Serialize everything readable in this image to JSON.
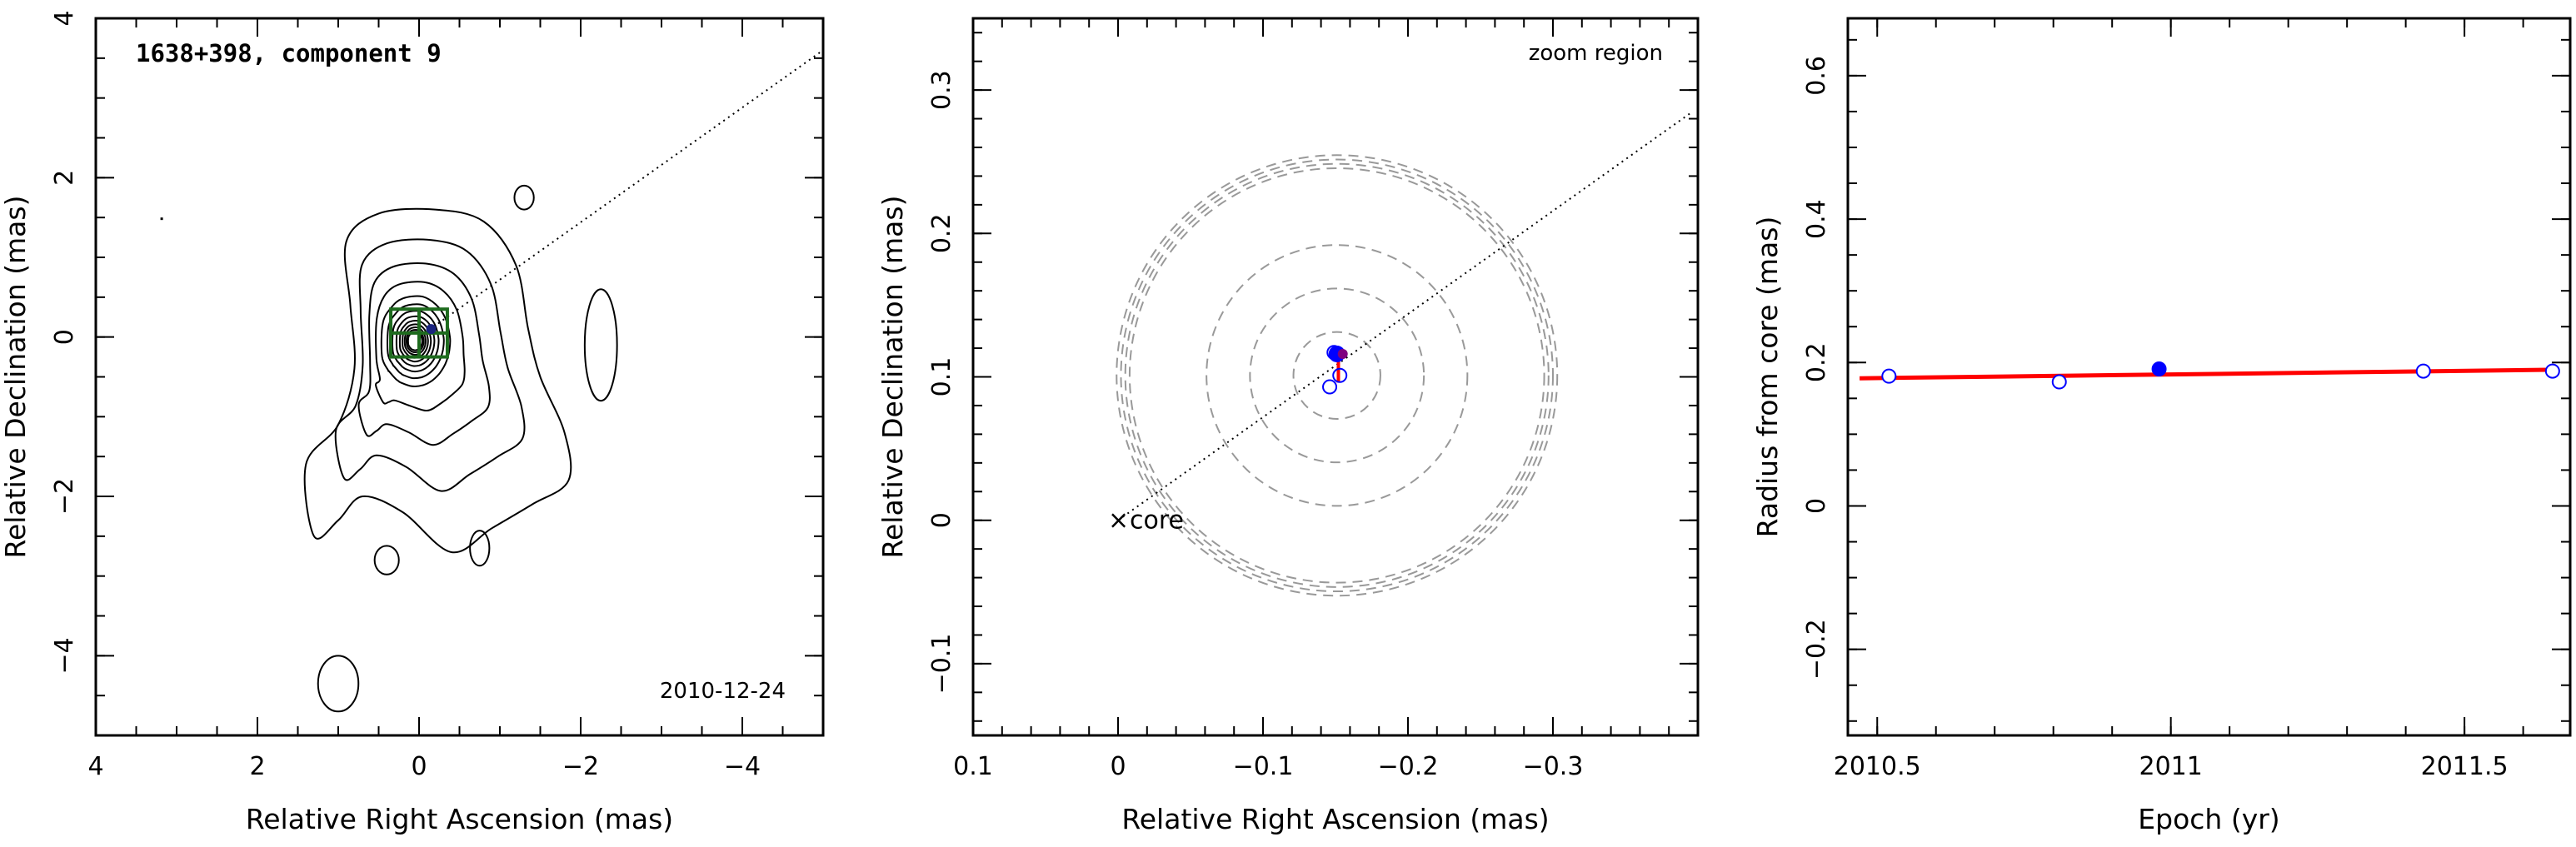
{
  "chart_data": [
    {
      "type": "contour",
      "title": "1638+398, component 9",
      "date_label": "2010-12-24",
      "xlabel": "Relative Right Ascension (mas)",
      "ylabel": "Relative Declination (mas)",
      "xlim": [
        4,
        -5
      ],
      "ylim": [
        -5,
        4
      ],
      "xticks": [
        4,
        2,
        0,
        -2,
        -4
      ],
      "yticks": [
        -4,
        -2,
        0,
        2,
        4
      ],
      "xtick_labels": [
        "4",
        "2",
        "0",
        "−2",
        "−4"
      ],
      "ytick_labels": [
        "−4",
        "−2",
        "0",
        "2",
        "4"
      ],
      "jet_direction_line": {
        "from": [
          0,
          0
        ],
        "to": [
          -5,
          3.6
        ],
        "style": "dotted"
      },
      "component_box": {
        "x": [
          0.35,
          -0.35
        ],
        "y": [
          -0.25,
          0.35
        ],
        "color": "#1e6b1e"
      },
      "component_position": [
        -0.15,
        0.1
      ],
      "beam_marker": [
        3.2,
        1.5
      ],
      "contour_center": [
        0.05,
        -0.05
      ],
      "contour_count": 13,
      "outer_contour_points": [
        [
          0.9,
          1.2
        ],
        [
          0.5,
          1.55
        ],
        [
          -0.2,
          1.6
        ],
        [
          -0.8,
          1.45
        ],
        [
          -1.2,
          0.9
        ],
        [
          -1.35,
          0.1
        ],
        [
          -1.5,
          -0.5
        ],
        [
          -1.8,
          -1.2
        ],
        [
          -1.85,
          -1.8
        ],
        [
          -1.4,
          -2.1
        ],
        [
          -0.9,
          -2.4
        ],
        [
          -0.4,
          -2.7
        ],
        [
          0.2,
          -2.2
        ],
        [
          0.7,
          -2.0
        ],
        [
          1.0,
          -2.3
        ],
        [
          1.3,
          -2.5
        ],
        [
          1.4,
          -1.6
        ],
        [
          1.0,
          -1.1
        ],
        [
          0.8,
          -0.4
        ],
        [
          0.85,
          0.4
        ]
      ],
      "islands": [
        {
          "cx": -1.3,
          "cy": 1.75,
          "rx": 0.12,
          "ry": 0.15
        },
        {
          "cx": -2.25,
          "cy": -0.1,
          "rx": 0.2,
          "ry": 0.7
        },
        {
          "cx": 0.4,
          "cy": -2.8,
          "rx": 0.15,
          "ry": 0.18
        },
        {
          "cx": -0.75,
          "cy": -2.65,
          "rx": 0.12,
          "ry": 0.22
        },
        {
          "cx": 1.0,
          "cy": -4.35,
          "rx": 0.25,
          "ry": 0.35
        }
      ]
    },
    {
      "type": "scatter",
      "annotation": "zoom region",
      "core_label": "core",
      "core_marker": "×",
      "xlabel": "Relative Right Ascension (mas)",
      "ylabel": "Relative Declination (mas)",
      "xlim": [
        0.1,
        -0.4
      ],
      "ylim": [
        -0.15,
        0.35
      ],
      "xticks": [
        0.1,
        0,
        -0.1,
        -0.2,
        -0.3
      ],
      "yticks": [
        -0.1,
        0,
        0.1,
        0.2,
        0.3
      ],
      "xtick_labels": [
        "0.1",
        "0",
        "−0.1",
        "−0.2",
        "−0.3"
      ],
      "ytick_labels": [
        "−0.1",
        "0",
        "0.1",
        "0.2",
        "0.3"
      ],
      "jet_direction_line": {
        "from": [
          0,
          0
        ],
        "to": [
          -0.395,
          0.284
        ],
        "style": "dotted"
      },
      "circles_center": [
        -0.151,
        0.101
      ],
      "circle_radii": [
        0.03,
        0.06,
        0.09,
        0.143,
        0.146,
        0.149,
        0.152
      ],
      "positions_open": [
        {
          "x": -0.146,
          "y": 0.093
        },
        {
          "x": -0.149,
          "y": 0.117
        },
        {
          "x": -0.153,
          "y": 0.101
        }
      ],
      "position_filled": {
        "x": -0.151,
        "y": 0.116
      },
      "position_filled_small": {
        "x": -0.155,
        "y": 0.116
      },
      "error_bar": {
        "x": -0.152,
        "y_low": 0.096,
        "y_high": 0.116,
        "color": "#ff0000"
      }
    },
    {
      "type": "scatter",
      "xlabel": "Epoch (yr)",
      "ylabel": "Radius from core (mas)",
      "xlim": [
        2010.45,
        2011.68
      ],
      "ylim": [
        -0.32,
        0.68
      ],
      "xticks": [
        2010.5,
        2011,
        2011.5
      ],
      "yticks": [
        -0.2,
        0,
        0.2,
        0.4,
        0.6
      ],
      "xtick_labels": [
        "2010.5",
        "2011",
        "2011.5"
      ],
      "ytick_labels": [
        "−0.2",
        "0",
        "0.2",
        "0.4",
        "0.6"
      ],
      "x": [
        2010.52,
        2010.81,
        2010.98,
        2011.43,
        2011.65
      ],
      "y": [
        0.181,
        0.173,
        0.191,
        0.188,
        0.188
      ],
      "filled": [
        false,
        false,
        true,
        false,
        false
      ],
      "fit_line": {
        "x": [
          2010.47,
          2011.66
        ],
        "y": [
          0.178,
          0.19
        ],
        "color": "#ff0000"
      },
      "marker_color": "#0000ff"
    }
  ]
}
